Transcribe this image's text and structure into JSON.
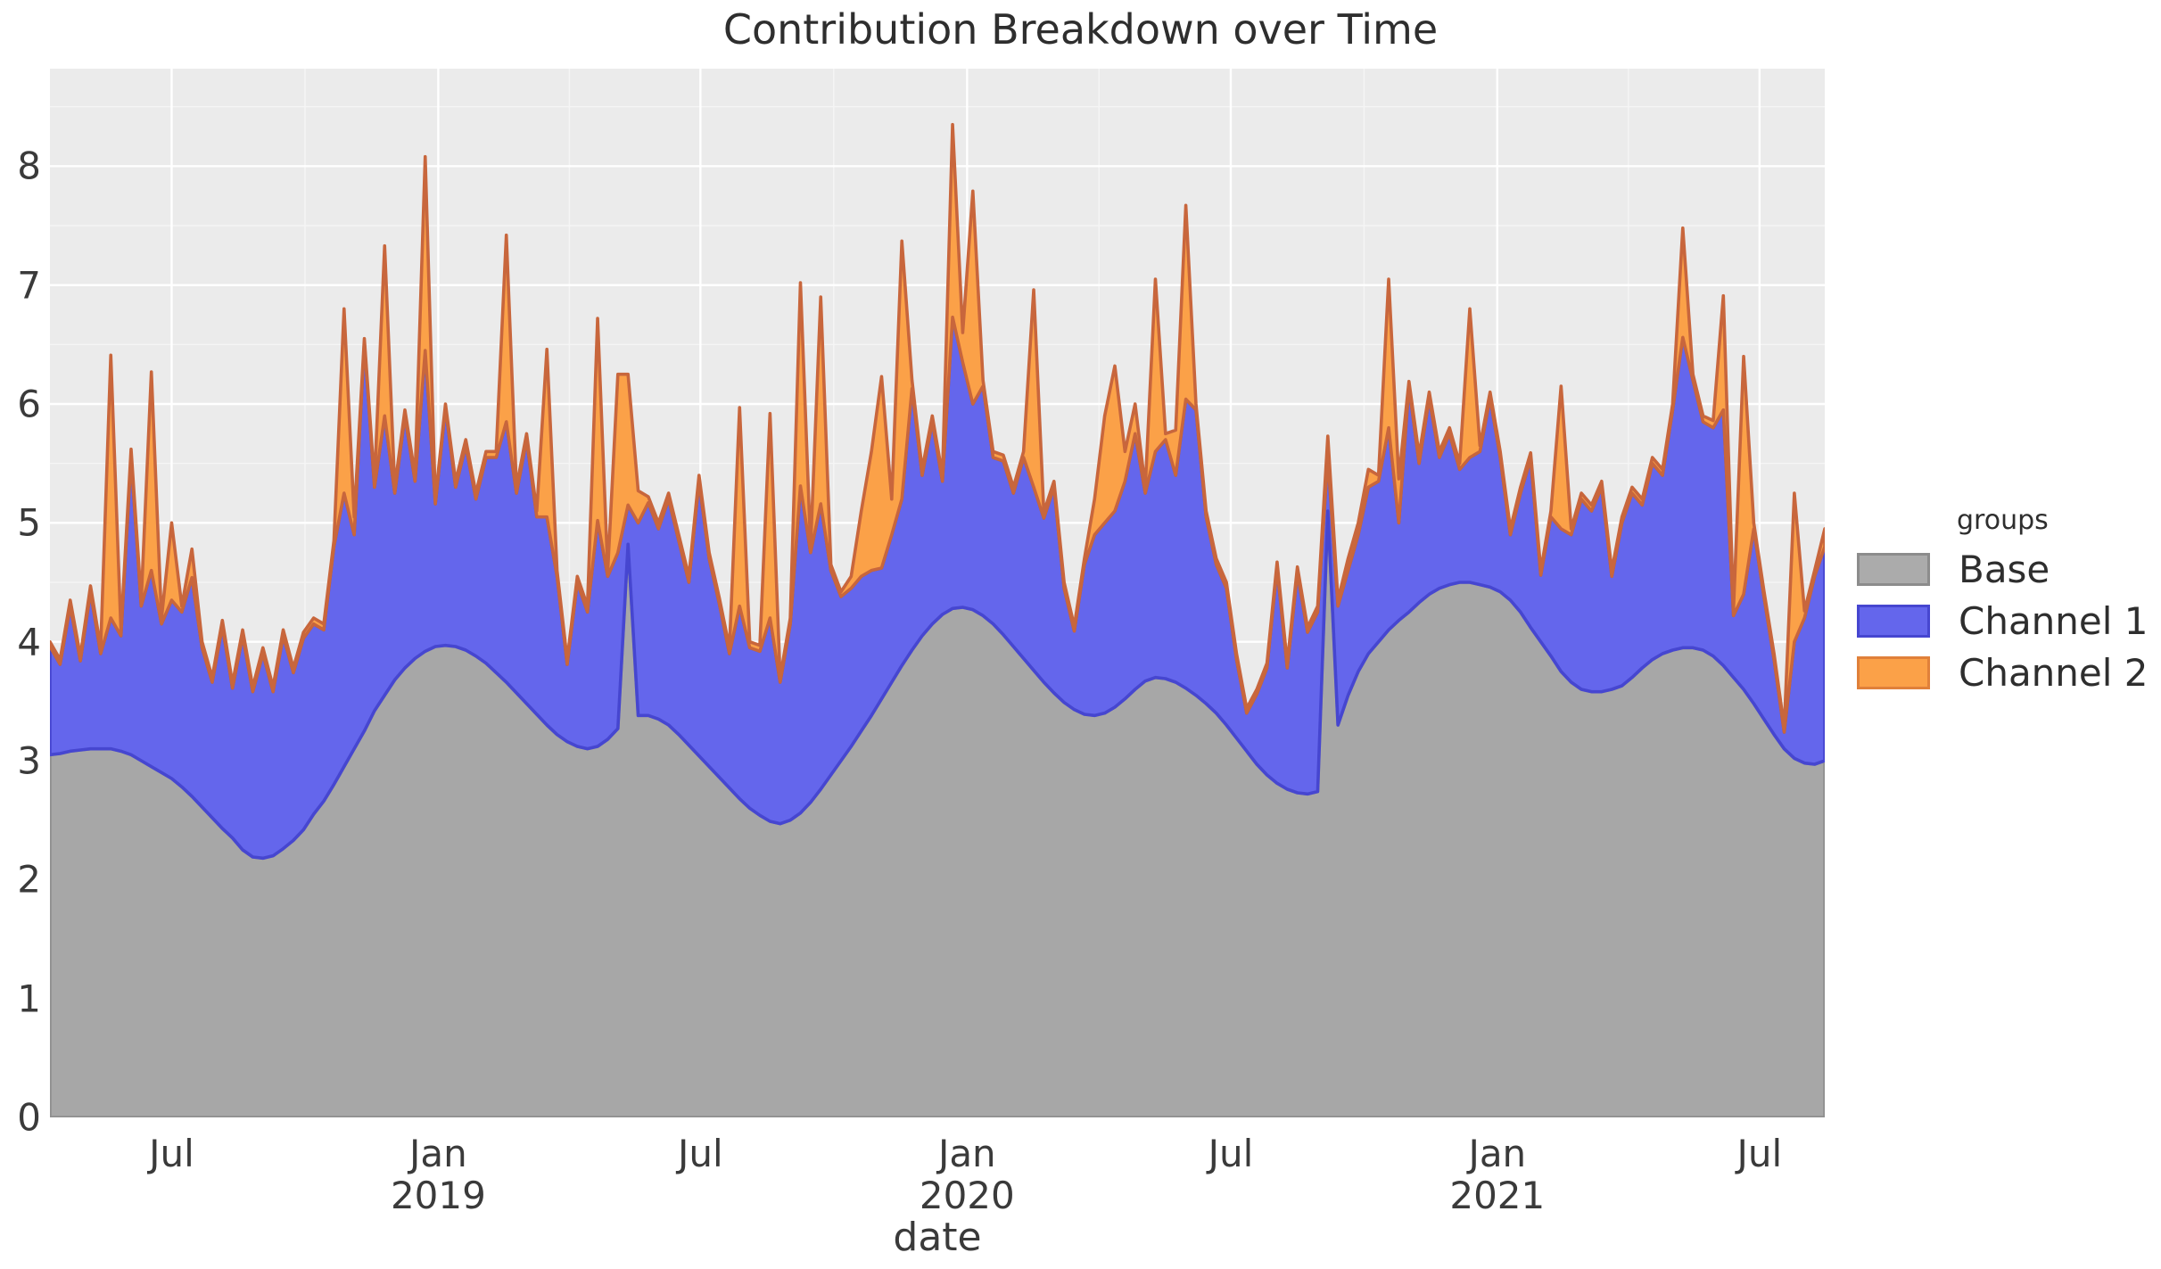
{
  "title": "Contribution Breakdown over Time",
  "axes": {
    "x_label": "date",
    "y_ticks": [
      "0",
      "1",
      "2",
      "3",
      "4",
      "5",
      "6",
      "7",
      "8"
    ],
    "x_ticks": [
      {
        "label": "Jul",
        "sublabel": "",
        "week": 12
      },
      {
        "label": "Jan",
        "sublabel": "2019",
        "week": 38.29
      },
      {
        "label": "Jul",
        "sublabel": "",
        "week": 64.14
      },
      {
        "label": "Jan",
        "sublabel": "2020",
        "week": 90.43
      },
      {
        "label": "Jul",
        "sublabel": "",
        "week": 116.43
      },
      {
        "label": "Jan",
        "sublabel": "2021",
        "week": 142.71
      },
      {
        "label": "Jul",
        "sublabel": "",
        "week": 168.57
      }
    ]
  },
  "legend": {
    "title": "groups",
    "items": [
      {
        "label": "Base",
        "fill": "#ababab",
        "stroke": "#8c8c8c"
      },
      {
        "label": "Channel 1",
        "fill": "#6466ec",
        "stroke": "#4646d0"
      },
      {
        "label": "Channel 2",
        "fill": "#fba148",
        "stroke": "#e0803a"
      }
    ]
  },
  "colors": {
    "panel_background": "#ebebeb",
    "grid_major": "#ffffff",
    "grid_minor": "#f5f5f5",
    "title_text": "#2e2e2e",
    "tick_text": "#3a3a3a"
  },
  "chart_data": {
    "type": "area",
    "stacked": true,
    "title": "Contribution Breakdown over Time",
    "xlabel": "date",
    "ylabel": "",
    "x_start": "2018-04-08",
    "x_end": "2021-08-15",
    "x_freq_days": 7,
    "ylim": [
      0,
      8.82
    ],
    "grid": true,
    "legend_position": "right",
    "series": [
      {
        "name": "Base",
        "fill": "#a7a7a7",
        "edge": "#8f8f8f",
        "values": [
          3.05,
          3.06,
          3.08,
          3.09,
          3.1,
          3.1,
          3.1,
          3.08,
          3.05,
          3.0,
          2.95,
          2.9,
          2.85,
          2.78,
          2.7,
          2.61,
          2.52,
          2.43,
          2.35,
          2.25,
          2.19,
          2.18,
          2.2,
          2.26,
          2.33,
          2.42,
          2.55,
          2.66,
          2.8,
          2.95,
          3.1,
          3.25,
          3.42,
          3.55,
          3.68,
          3.78,
          3.86,
          3.92,
          3.96,
          3.97,
          3.96,
          3.93,
          3.88,
          3.82,
          3.74,
          3.66,
          3.57,
          3.48,
          3.39,
          3.3,
          3.22,
          3.16,
          3.12,
          3.1,
          3.12,
          3.18,
          3.27,
          4.82,
          3.38,
          3.38,
          3.35,
          3.3,
          3.22,
          3.13,
          3.04,
          2.95,
          2.86,
          2.77,
          2.68,
          2.6,
          2.54,
          2.49,
          2.47,
          2.5,
          2.56,
          2.65,
          2.76,
          2.88,
          3.0,
          3.12,
          3.25,
          3.38,
          3.52,
          3.66,
          3.8,
          3.93,
          4.05,
          4.15,
          4.23,
          4.28,
          4.29,
          4.27,
          4.22,
          4.15,
          4.06,
          3.96,
          3.86,
          3.76,
          3.66,
          3.57,
          3.49,
          3.43,
          3.39,
          3.38,
          3.4,
          3.45,
          3.52,
          3.6,
          3.67,
          3.7,
          3.69,
          3.66,
          3.61,
          3.55,
          3.48,
          3.4,
          3.3,
          3.19,
          3.08,
          2.97,
          2.88,
          2.81,
          2.76,
          2.73,
          2.72,
          2.74,
          5.1,
          3.3,
          3.55,
          3.75,
          3.9,
          4.0,
          4.1,
          4.18,
          4.25,
          4.33,
          4.4,
          4.45,
          4.48,
          4.5,
          4.5,
          4.48,
          4.46,
          4.42,
          4.35,
          4.25,
          4.12,
          4.0,
          3.88,
          3.75,
          3.66,
          3.6,
          3.58,
          3.58,
          3.6,
          3.63,
          3.7,
          3.78,
          3.85,
          3.9,
          3.93,
          3.95,
          3.95,
          3.93,
          3.88,
          3.8,
          3.7,
          3.6,
          3.48,
          3.35,
          3.22,
          3.1,
          3.02,
          2.98,
          2.97,
          3.0
        ]
      },
      {
        "name": "Channel 1",
        "fill": "#6466ec",
        "edge": "#4646d0",
        "values": [
          0.91,
          0.75,
          1.22,
          0.75,
          1.32,
          0.8,
          1.1,
          0.97,
          2.5,
          1.3,
          1.65,
          1.25,
          1.5,
          1.47,
          1.84,
          1.34,
          1.14,
          1.7,
          1.26,
          1.8,
          1.39,
          1.72,
          1.38,
          1.79,
          1.41,
          1.61,
          1.6,
          1.44,
          2.0,
          2.3,
          1.8,
          3.27,
          1.88,
          2.35,
          1.57,
          2.12,
          1.49,
          2.53,
          1.2,
          2.0,
          1.34,
          1.72,
          1.32,
          1.73,
          1.81,
          2.19,
          1.68,
          2.22,
          1.66,
          1.75,
          1.33,
          0.65,
          1.38,
          1.15,
          1.9,
          1.37,
          1.48,
          0.33,
          1.62,
          1.79,
          1.6,
          1.9,
          1.63,
          1.37,
          2.31,
          1.75,
          1.46,
          1.13,
          1.62,
          1.35,
          1.38,
          1.71,
          1.19,
          1.65,
          2.75,
          2.1,
          2.4,
          1.72,
          1.38,
          1.33,
          1.3,
          1.22,
          1.1,
          1.24,
          1.4,
          2.2,
          1.35,
          1.7,
          1.12,
          2.45,
          2.06,
          1.73,
          1.93,
          1.4,
          1.46,
          1.29,
          1.69,
          1.54,
          1.38,
          1.73,
          0.96,
          0.66,
          1.26,
          1.52,
          1.6,
          1.65,
          1.83,
          2.15,
          1.58,
          1.9,
          2.01,
          1.74,
          2.43,
          2.4,
          1.57,
          1.25,
          1.15,
          0.66,
          0.32,
          0.59,
          0.9,
          1.81,
          1.02,
          1.85,
          1.36,
          1.51,
          0.45,
          1.0,
          1.05,
          1.15,
          1.4,
          1.35,
          1.7,
          0.82,
          1.9,
          1.17,
          1.65,
          1.1,
          1.27,
          0.95,
          1.05,
          1.12,
          1.59,
          1.13,
          0.55,
          1.0,
          1.42,
          0.56,
          1.17,
          1.2,
          1.24,
          1.6,
          1.52,
          1.72,
          0.95,
          1.37,
          1.55,
          1.37,
          1.65,
          1.5,
          2.02,
          2.61,
          2.25,
          1.92,
          1.92,
          2.15,
          0.52,
          0.8,
          1.47,
          1.03,
          0.63,
          0.14,
          0.98,
          1.22,
          1.58,
          1.8
        ]
      },
      {
        "name": "Channel 2",
        "fill": "#fba148",
        "edge": "#c8663c",
        "values": [
          0.04,
          0.04,
          0.05,
          0.04,
          0.05,
          0.05,
          2.21,
          0.05,
          0.07,
          0.05,
          1.67,
          0.05,
          0.65,
          0.05,
          0.24,
          0.05,
          0.04,
          0.05,
          0.04,
          0.05,
          0.04,
          0.05,
          0.04,
          0.05,
          0.04,
          0.05,
          0.05,
          0.05,
          0.05,
          1.55,
          0.15,
          0.03,
          0.05,
          1.43,
          0.05,
          0.05,
          0.05,
          1.63,
          0.04,
          0.03,
          0.05,
          0.05,
          0.05,
          0.05,
          0.05,
          1.57,
          0.05,
          0.05,
          0.05,
          1.41,
          0.05,
          0.04,
          0.05,
          0.05,
          1.7,
          0.05,
          1.5,
          1.1,
          0.27,
          0.05,
          0.05,
          0.05,
          0.05,
          0.05,
          0.05,
          0.05,
          0.05,
          0.05,
          1.67,
          0.05,
          0.05,
          1.72,
          0.04,
          0.05,
          1.71,
          0.05,
          1.74,
          0.05,
          0.04,
          0.1,
          0.55,
          1.0,
          1.61,
          0.3,
          2.17,
          0.07,
          0.05,
          0.05,
          0.05,
          1.62,
          0.25,
          1.79,
          0.05,
          0.05,
          0.05,
          0.05,
          0.05,
          1.66,
          0.05,
          0.05,
          0.05,
          0.04,
          0.05,
          0.3,
          0.9,
          1.22,
          0.25,
          0.25,
          0.05,
          1.45,
          0.05,
          0.38,
          1.63,
          0.05,
          0.05,
          0.05,
          0.05,
          0.05,
          0.04,
          0.04,
          0.04,
          0.05,
          0.04,
          0.05,
          0.04,
          0.05,
          0.18,
          0.05,
          0.1,
          0.1,
          0.15,
          0.05,
          1.25,
          0.37,
          0.04,
          0.07,
          0.05,
          0.05,
          0.05,
          0.05,
          1.25,
          0.05,
          0.05,
          0.05,
          0.05,
          0.05,
          0.05,
          0.04,
          0.05,
          1.2,
          0.05,
          0.05,
          0.05,
          0.05,
          0.05,
          0.05,
          0.05,
          0.05,
          0.05,
          0.05,
          0.05,
          0.92,
          0.05,
          0.05,
          0.06,
          0.96,
          0.05,
          2.0,
          0.05,
          0.05,
          0.05,
          0.04,
          1.25,
          0.06,
          0.05,
          0.15
        ]
      }
    ]
  }
}
